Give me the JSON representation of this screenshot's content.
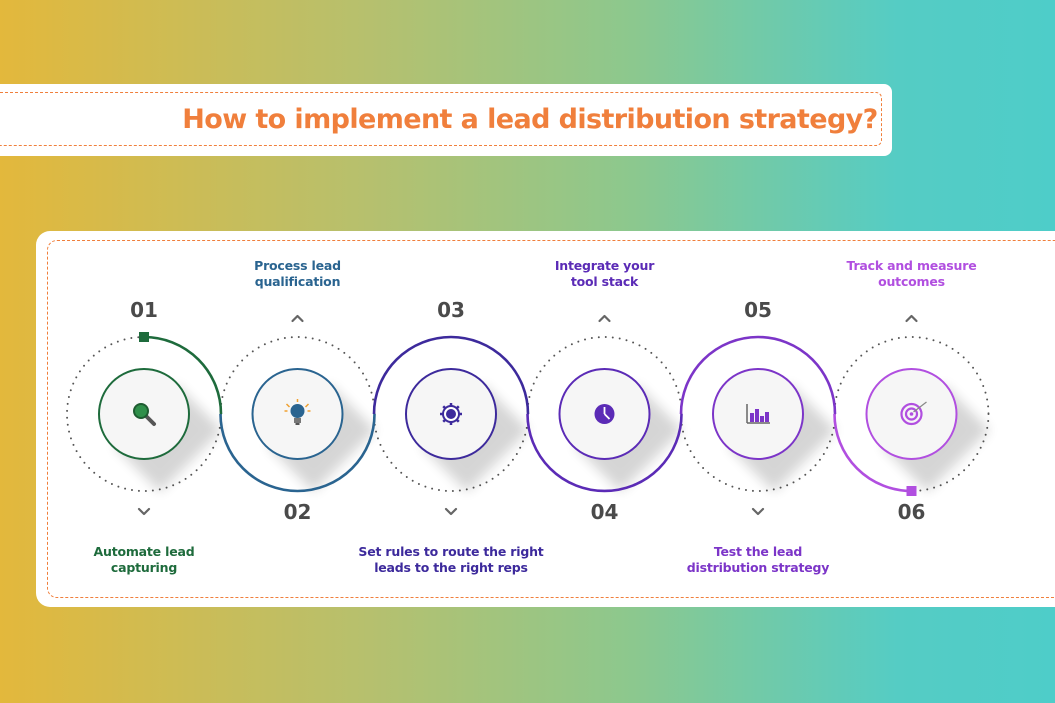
{
  "title": "How to implement a lead distribution strategy?",
  "steps": [
    {
      "number": "01",
      "label_lines": [
        "Automate lead",
        "capturing"
      ],
      "color": "#1e6b3c",
      "icon": "search-icon"
    },
    {
      "number": "02",
      "label_lines": [
        "Process lead",
        "qualification"
      ],
      "color": "#2a6490",
      "icon": "lightbulb-icon"
    },
    {
      "number": "03",
      "label_lines": [
        "Set rules to route the right",
        "leads to the right reps"
      ],
      "color": "#3d2a9c",
      "icon": "gear-icon"
    },
    {
      "number": "04",
      "label_lines": [
        "Integrate your",
        "tool stack"
      ],
      "color": "#5b2bb6",
      "icon": "clock-icon"
    },
    {
      "number": "05",
      "label_lines": [
        "Test the lead",
        "distribution strategy"
      ],
      "color": "#7c35c8",
      "icon": "bar-chart-icon"
    },
    {
      "number": "06",
      "label_lines": [
        "Track and measure",
        "outcomes"
      ],
      "color": "#b14fe0",
      "icon": "target-icon"
    }
  ],
  "colors": {
    "accent": "#f07f3c",
    "number_text": "#4a4a4a",
    "dotted_ring": "#555555"
  }
}
